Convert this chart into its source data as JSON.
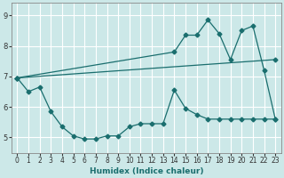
{
  "xlabel": "Humidex (Indice chaleur)",
  "bg_color": "#cce8e8",
  "grid_color": "#b8d8d8",
  "line_color": "#1a6e6e",
  "xlim": [
    -0.5,
    23.5
  ],
  "ylim": [
    4.5,
    9.4
  ],
  "xticks": [
    0,
    1,
    2,
    3,
    4,
    5,
    6,
    7,
    8,
    9,
    10,
    11,
    12,
    13,
    14,
    15,
    16,
    17,
    18,
    19,
    20,
    21,
    22,
    23
  ],
  "yticks": [
    5,
    6,
    7,
    8,
    9
  ],
  "line1_x": [
    0,
    1,
    2,
    3,
    4,
    5,
    6,
    7,
    8,
    9,
    10,
    11,
    12,
    13,
    14,
    15,
    16,
    17,
    18,
    19,
    20,
    21,
    22,
    23
  ],
  "line1_y": [
    6.95,
    6.5,
    6.65,
    5.85,
    5.35,
    5.05,
    4.95,
    4.95,
    5.05,
    5.05,
    5.35,
    5.45,
    5.45,
    5.45,
    6.55,
    5.95,
    5.75,
    5.6,
    5.6,
    5.6,
    5.6,
    5.6,
    5.6,
    5.6
  ],
  "line2_x": [
    0,
    23
  ],
  "line2_y": [
    6.95,
    7.55
  ],
  "line3_x": [
    0,
    14,
    15,
    16,
    17,
    18,
    19,
    20,
    21,
    22,
    23
  ],
  "line3_y": [
    6.95,
    7.8,
    8.35,
    8.35,
    8.85,
    8.4,
    7.55,
    8.5,
    8.65,
    7.2,
    5.6
  ]
}
